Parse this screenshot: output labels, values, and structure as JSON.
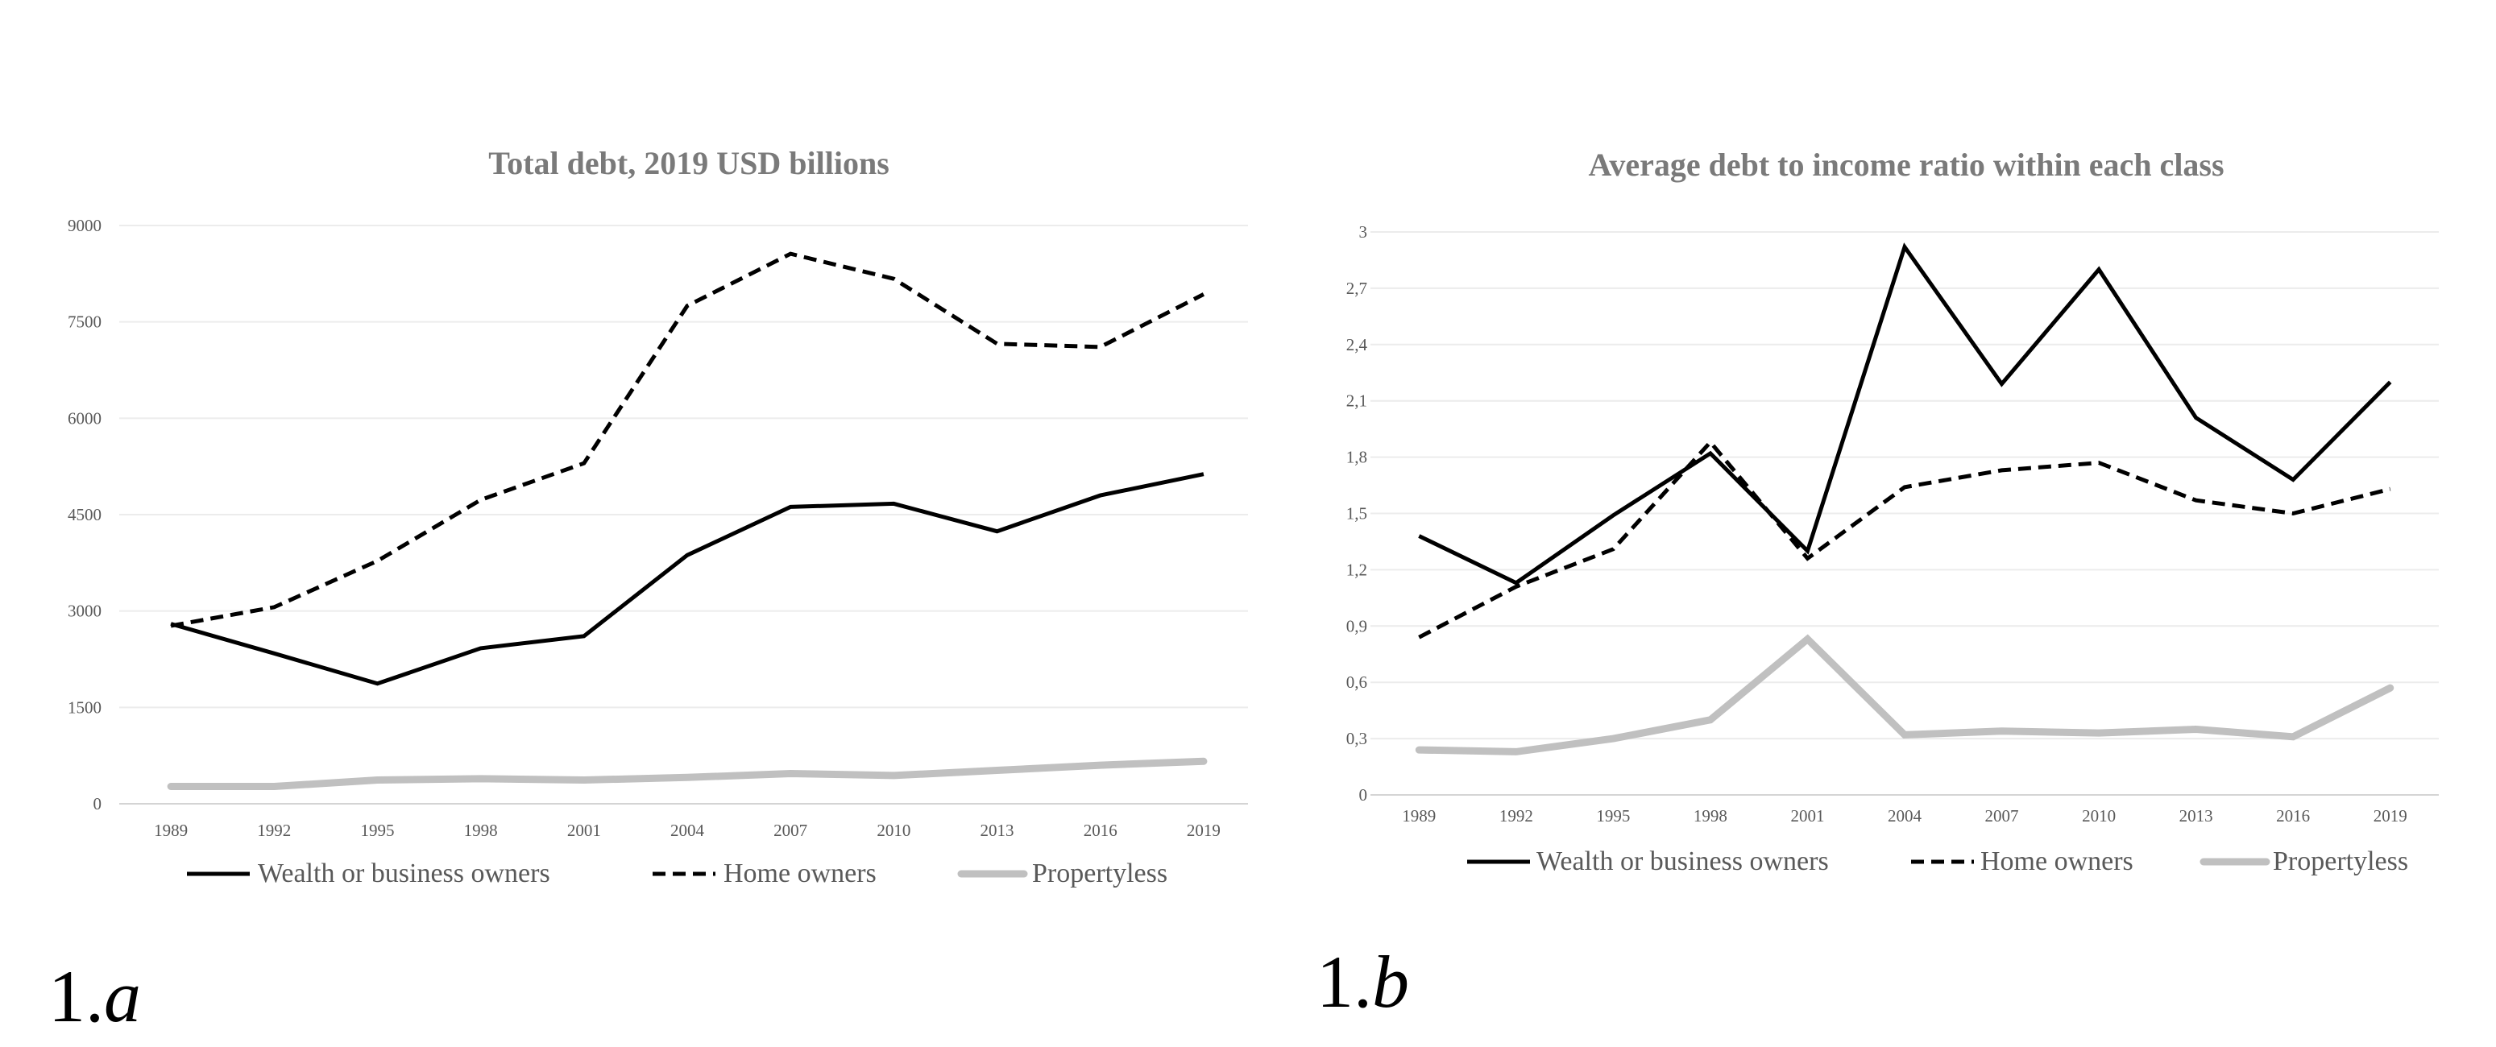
{
  "chart_data": [
    {
      "type": "line",
      "title": "Total debt, 2019 USD billions",
      "panel_label_num": "1.",
      "panel_label_letter": "a",
      "categories": [
        "1989",
        "1992",
        "1995",
        "1998",
        "2001",
        "2004",
        "2007",
        "2010",
        "2013",
        "2016",
        "2019"
      ],
      "yticks": [
        "0",
        "1500",
        "3000",
        "4500",
        "6000",
        "7500",
        "9000"
      ],
      "ylim": [
        0,
        9000
      ],
      "grid": true,
      "legend_position": "bottom",
      "series": [
        {
          "name": "Wealth or business owners",
          "style": "solid",
          "color": "#000000",
          "values": [
            2800,
            2340,
            1870,
            2420,
            2610,
            3870,
            4620,
            4670,
            4240,
            4800,
            5130
          ]
        },
        {
          "name": "Home owners",
          "style": "dashed",
          "color": "#000000",
          "values": [
            2770,
            3060,
            3780,
            4730,
            5300,
            7750,
            8560,
            8170,
            7160,
            7110,
            7930
          ]
        },
        {
          "name": "Propertyless",
          "style": "solid",
          "color": "#c0c0c0",
          "values": [
            270,
            270,
            370,
            390,
            370,
            410,
            470,
            440,
            520,
            600,
            660
          ]
        }
      ]
    },
    {
      "type": "line",
      "title": "Average debt to income ratio within each class",
      "panel_label_num": "1.",
      "panel_label_letter": "b",
      "categories": [
        "1989",
        "1992",
        "1995",
        "1998",
        "2001",
        "2004",
        "2007",
        "2010",
        "2013",
        "2016",
        "2019"
      ],
      "yticks": [
        "0",
        "0,3",
        "0,6",
        "0,9",
        "1,2",
        "1,5",
        "1,8",
        "2,1",
        "2,4",
        "2,7",
        "3"
      ],
      "ylim": [
        0,
        3
      ],
      "grid": true,
      "legend_position": "bottom",
      "series": [
        {
          "name": "Wealth or business owners",
          "style": "solid",
          "color": "#000000",
          "values": [
            1.38,
            1.13,
            1.49,
            1.82,
            1.3,
            2.92,
            2.19,
            2.8,
            2.01,
            1.68,
            2.2
          ]
        },
        {
          "name": "Home owners",
          "style": "dashed",
          "color": "#000000",
          "values": [
            0.84,
            1.11,
            1.31,
            1.88,
            1.26,
            1.64,
            1.73,
            1.77,
            1.57,
            1.5,
            1.63
          ]
        },
        {
          "name": "Propertyless",
          "style": "solid",
          "color": "#c0c0c0",
          "values": [
            0.24,
            0.23,
            0.3,
            0.4,
            0.83,
            0.32,
            0.34,
            0.33,
            0.35,
            0.31,
            0.57
          ]
        }
      ]
    }
  ]
}
